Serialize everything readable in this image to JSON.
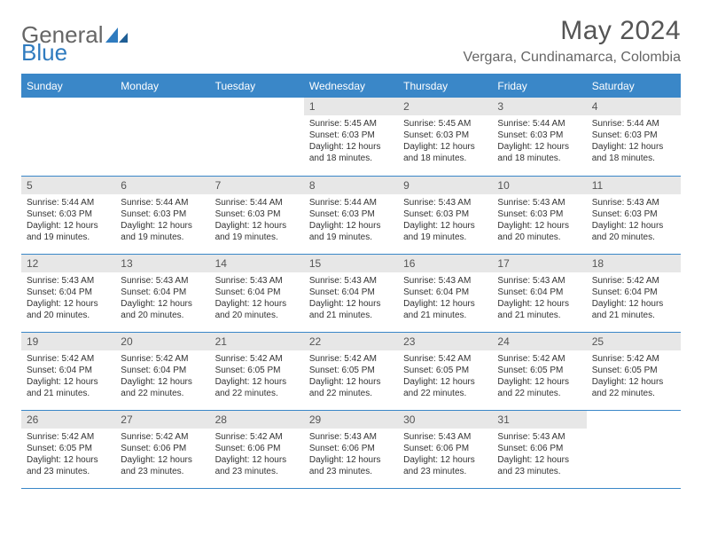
{
  "logo": {
    "text1": "General",
    "text2": "Blue"
  },
  "title": "May 2024",
  "location": "Vergara, Cundinamarca, Colombia",
  "colors": {
    "header_bg": "#3a87c8",
    "header_text": "#ffffff",
    "daynum_bg": "#e7e7e7",
    "rule": "#3a87c8",
    "text": "#333333",
    "title_text": "#555555"
  },
  "day_headers": [
    "Sunday",
    "Monday",
    "Tuesday",
    "Wednesday",
    "Thursday",
    "Friday",
    "Saturday"
  ],
  "weeks": [
    [
      null,
      null,
      null,
      {
        "n": "1",
        "sr": "5:45 AM",
        "ss": "6:03 PM",
        "dh": "12",
        "dm": "18"
      },
      {
        "n": "2",
        "sr": "5:45 AM",
        "ss": "6:03 PM",
        "dh": "12",
        "dm": "18"
      },
      {
        "n": "3",
        "sr": "5:44 AM",
        "ss": "6:03 PM",
        "dh": "12",
        "dm": "18"
      },
      {
        "n": "4",
        "sr": "5:44 AM",
        "ss": "6:03 PM",
        "dh": "12",
        "dm": "18"
      }
    ],
    [
      {
        "n": "5",
        "sr": "5:44 AM",
        "ss": "6:03 PM",
        "dh": "12",
        "dm": "19"
      },
      {
        "n": "6",
        "sr": "5:44 AM",
        "ss": "6:03 PM",
        "dh": "12",
        "dm": "19"
      },
      {
        "n": "7",
        "sr": "5:44 AM",
        "ss": "6:03 PM",
        "dh": "12",
        "dm": "19"
      },
      {
        "n": "8",
        "sr": "5:44 AM",
        "ss": "6:03 PM",
        "dh": "12",
        "dm": "19"
      },
      {
        "n": "9",
        "sr": "5:43 AM",
        "ss": "6:03 PM",
        "dh": "12",
        "dm": "19"
      },
      {
        "n": "10",
        "sr": "5:43 AM",
        "ss": "6:03 PM",
        "dh": "12",
        "dm": "20"
      },
      {
        "n": "11",
        "sr": "5:43 AM",
        "ss": "6:03 PM",
        "dh": "12",
        "dm": "20"
      }
    ],
    [
      {
        "n": "12",
        "sr": "5:43 AM",
        "ss": "6:04 PM",
        "dh": "12",
        "dm": "20"
      },
      {
        "n": "13",
        "sr": "5:43 AM",
        "ss": "6:04 PM",
        "dh": "12",
        "dm": "20"
      },
      {
        "n": "14",
        "sr": "5:43 AM",
        "ss": "6:04 PM",
        "dh": "12",
        "dm": "20"
      },
      {
        "n": "15",
        "sr": "5:43 AM",
        "ss": "6:04 PM",
        "dh": "12",
        "dm": "21"
      },
      {
        "n": "16",
        "sr": "5:43 AM",
        "ss": "6:04 PM",
        "dh": "12",
        "dm": "21"
      },
      {
        "n": "17",
        "sr": "5:43 AM",
        "ss": "6:04 PM",
        "dh": "12",
        "dm": "21"
      },
      {
        "n": "18",
        "sr": "5:42 AM",
        "ss": "6:04 PM",
        "dh": "12",
        "dm": "21"
      }
    ],
    [
      {
        "n": "19",
        "sr": "5:42 AM",
        "ss": "6:04 PM",
        "dh": "12",
        "dm": "21"
      },
      {
        "n": "20",
        "sr": "5:42 AM",
        "ss": "6:04 PM",
        "dh": "12",
        "dm": "22"
      },
      {
        "n": "21",
        "sr": "5:42 AM",
        "ss": "6:05 PM",
        "dh": "12",
        "dm": "22"
      },
      {
        "n": "22",
        "sr": "5:42 AM",
        "ss": "6:05 PM",
        "dh": "12",
        "dm": "22"
      },
      {
        "n": "23",
        "sr": "5:42 AM",
        "ss": "6:05 PM",
        "dh": "12",
        "dm": "22"
      },
      {
        "n": "24",
        "sr": "5:42 AM",
        "ss": "6:05 PM",
        "dh": "12",
        "dm": "22"
      },
      {
        "n": "25",
        "sr": "5:42 AM",
        "ss": "6:05 PM",
        "dh": "12",
        "dm": "22"
      }
    ],
    [
      {
        "n": "26",
        "sr": "5:42 AM",
        "ss": "6:05 PM",
        "dh": "12",
        "dm": "23"
      },
      {
        "n": "27",
        "sr": "5:42 AM",
        "ss": "6:06 PM",
        "dh": "12",
        "dm": "23"
      },
      {
        "n": "28",
        "sr": "5:42 AM",
        "ss": "6:06 PM",
        "dh": "12",
        "dm": "23"
      },
      {
        "n": "29",
        "sr": "5:43 AM",
        "ss": "6:06 PM",
        "dh": "12",
        "dm": "23"
      },
      {
        "n": "30",
        "sr": "5:43 AM",
        "ss": "6:06 PM",
        "dh": "12",
        "dm": "23"
      },
      {
        "n": "31",
        "sr": "5:43 AM",
        "ss": "6:06 PM",
        "dh": "12",
        "dm": "23"
      },
      null
    ]
  ],
  "labels": {
    "sunrise": "Sunrise:",
    "sunset": "Sunset:",
    "daylight": "Daylight:",
    "hours": "hours",
    "and": "and",
    "minutes": "minutes."
  }
}
